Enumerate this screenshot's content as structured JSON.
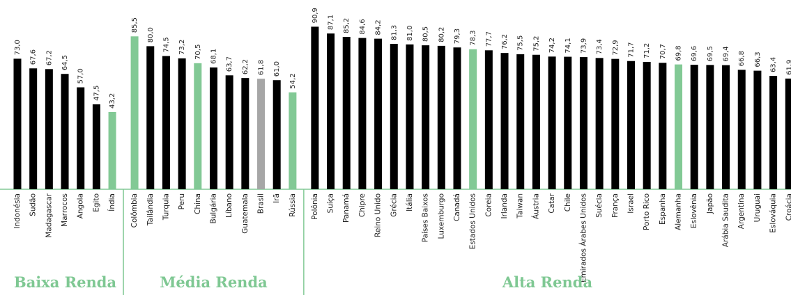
{
  "chart_data": {
    "type": "bar",
    "ylim": [
      0,
      100
    ],
    "groups": [
      {
        "name": "Baixa Renda",
        "categories": [
          "Indonésia",
          "Sudão",
          "Madagascar",
          "Marrocos",
          "Angola",
          "Egito",
          "Índia"
        ],
        "values": [
          73.0,
          67.6,
          67.2,
          64.5,
          57.0,
          47.5,
          43.2
        ],
        "value_labels": [
          "73,0",
          "67,6",
          "67,2",
          "64,5",
          "57,0",
          "47,5",
          "43,2"
        ],
        "colors": [
          "#000000",
          "#000000",
          "#000000",
          "#000000",
          "#000000",
          "#000000",
          "#82c995"
        ]
      },
      {
        "name": "Média Renda",
        "categories": [
          "Colômbia",
          "Tailândia",
          "Turquia",
          "Peru",
          "China",
          "Bulgária",
          "Líbano",
          "Guatemala",
          "Brasil",
          "Irã",
          "Rússia"
        ],
        "values": [
          85.5,
          80.0,
          74.5,
          73.2,
          70.5,
          68.1,
          63.7,
          62.2,
          61.8,
          61.0,
          54.2
        ],
        "value_labels": [
          "85,5",
          "80,0",
          "74,5",
          "73,2",
          "70,5",
          "68,1",
          "63,7",
          "62,2",
          "61,8",
          "61,0",
          "54,2"
        ],
        "colors": [
          "#82c995",
          "#000000",
          "#000000",
          "#000000",
          "#82c995",
          "#000000",
          "#000000",
          "#000000",
          "#a6a6a6",
          "#000000",
          "#82c995"
        ]
      },
      {
        "name": "Alta Renda",
        "categories": [
          "Polônia",
          "Suíça",
          "Panamá",
          "Chipre",
          "Reino Unido",
          "Grécia",
          "Itália",
          "Países Baixos",
          "Luxemburgo",
          "Canadá",
          "Estados Unidos",
          "Coreia",
          "Irlanda",
          "Taiwan",
          "Áustria",
          "Catar",
          "Chile",
          "Emirados Árabes Unidos",
          "Suécia",
          "França",
          "Israel",
          "Porto Rico",
          "Espanha",
          "Alemanha",
          "Eslovênia",
          "Japão",
          "Arábia Saudita",
          "Argentina",
          "Uruguai",
          "Eslováquia",
          "Croácia"
        ],
        "values": [
          90.9,
          87.1,
          85.2,
          84.6,
          84.2,
          81.3,
          81.0,
          80.5,
          80.2,
          79.3,
          78.3,
          77.7,
          76.2,
          75.5,
          75.2,
          74.2,
          74.1,
          73.9,
          73.4,
          72.9,
          71.7,
          71.2,
          70.7,
          69.8,
          69.6,
          69.5,
          69.4,
          66.8,
          66.3,
          63.4,
          61.9
        ],
        "value_labels": [
          "90,9",
          "87,1",
          "85,2",
          "84,6",
          "84,2",
          "81,3",
          "81,0",
          "80,5",
          "80,2",
          "79,3",
          "78,3",
          "77,7",
          "76,2",
          "75,5",
          "75,2",
          "74,2",
          "74,1",
          "73,9",
          "73,4",
          "72,9",
          "71,7",
          "71,2",
          "70,7",
          "69,8",
          "69,6",
          "69,5",
          "69,4",
          "66,8",
          "66,3",
          "63,4",
          "61,9"
        ],
        "colors": [
          "#000000",
          "#000000",
          "#000000",
          "#000000",
          "#000000",
          "#000000",
          "#000000",
          "#000000",
          "#000000",
          "#000000",
          "#82c995",
          "#000000",
          "#000000",
          "#000000",
          "#000000",
          "#000000",
          "#000000",
          "#000000",
          "#000000",
          "#000000",
          "#000000",
          "#000000",
          "#000000",
          "#82c995",
          "#000000",
          "#000000",
          "#000000",
          "#000000",
          "#000000",
          "#000000",
          "#000000"
        ]
      }
    ]
  }
}
